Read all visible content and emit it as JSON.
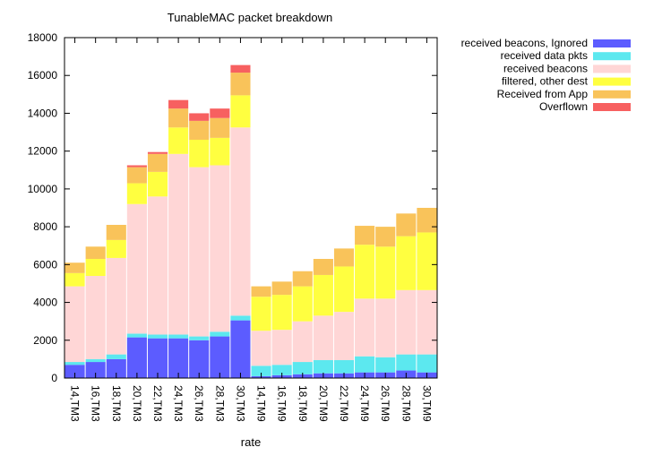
{
  "chart_data": {
    "type": "bar",
    "stacked": true,
    "title": "TunableMAC packet breakdown",
    "xlabel": "rate",
    "ylabel": "",
    "ylim": [
      0,
      18000
    ],
    "yticks": [
      "0",
      "2000",
      "4000",
      "6000",
      "8000",
      "10000",
      "12000",
      "14000",
      "16000",
      "18000"
    ],
    "grid": false,
    "legend_position": "right",
    "categories": [
      "14,TM3",
      "16,TM3",
      "18,TM3",
      "20,TM3",
      "22,TM3",
      "24,TM3",
      "26,TM3",
      "28,TM3",
      "30,TM3",
      "14,TM9",
      "16,TM9",
      "18,TM9",
      "20,TM9",
      "22,TM9",
      "24,TM9",
      "26,TM9",
      "28,TM9",
      "30,TM9"
    ],
    "series": [
      {
        "name": "received beacons, Ignored",
        "color": "#5c5cff",
        "values": [
          700,
          850,
          1000,
          2150,
          2100,
          2100,
          2000,
          2200,
          3050,
          100,
          150,
          200,
          250,
          250,
          300,
          300,
          400,
          300
        ]
      },
      {
        "name": "received data pkts",
        "color": "#5ce8ef",
        "values": [
          150,
          150,
          250,
          200,
          200,
          200,
          200,
          250,
          250,
          550,
          550,
          650,
          700,
          700,
          850,
          800,
          850,
          950
        ]
      },
      {
        "name": "received beacons",
        "color": "#ffd6d6",
        "values": [
          4000,
          4400,
          5100,
          6850,
          7300,
          9550,
          8950,
          8800,
          9950,
          1850,
          1850,
          2150,
          2350,
          2550,
          3050,
          3100,
          3400,
          3400
        ]
      },
      {
        "name": "filtered, other dest",
        "color": "#ffff40",
        "values": [
          700,
          900,
          950,
          1100,
          1300,
          1400,
          1450,
          1450,
          1700,
          1800,
          1850,
          1850,
          2150,
          2400,
          2850,
          2750,
          2850,
          3050
        ]
      },
      {
        "name": "Received from App",
        "color": "#f9c35a",
        "values": [
          550,
          650,
          800,
          850,
          950,
          1000,
          1000,
          1050,
          1200,
          550,
          700,
          800,
          850,
          950,
          1000,
          1050,
          1200,
          1300
        ]
      },
      {
        "name": "Overflown",
        "color": "#f76060",
        "values": [
          0,
          0,
          0,
          100,
          100,
          450,
          400,
          500,
          400,
          0,
          0,
          0,
          0,
          0,
          0,
          0,
          0,
          0
        ]
      }
    ]
  }
}
